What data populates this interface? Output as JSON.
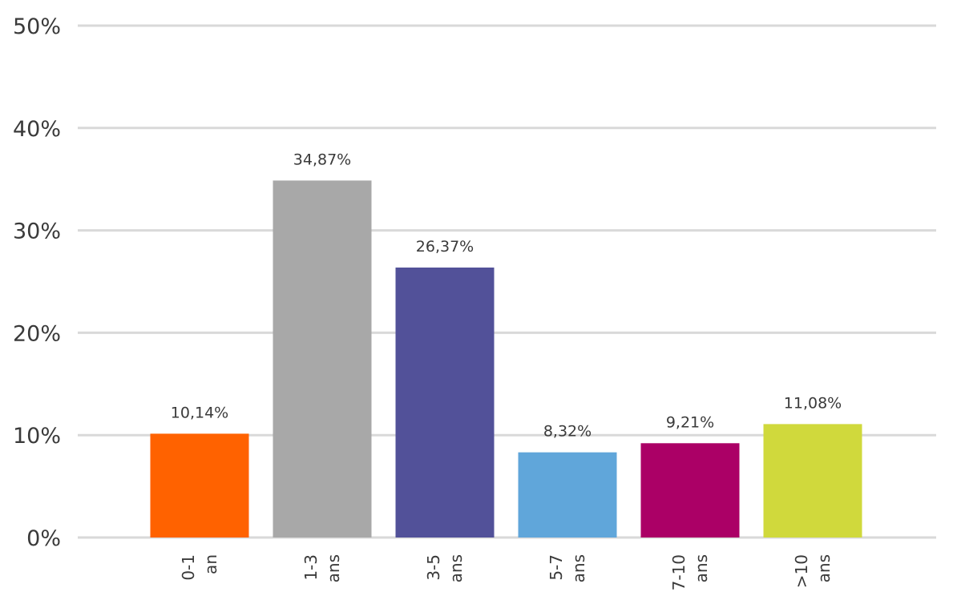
{
  "chart_data": {
    "type": "bar",
    "categories": [
      "0-1 an",
      "1-3 ans",
      "3-5 ans",
      "5-7 ans",
      "7-10 ans",
      ">10 ans"
    ],
    "category_lines": [
      [
        "0-1",
        "an"
      ],
      [
        "1-3",
        "ans"
      ],
      [
        "3-5",
        "ans"
      ],
      [
        "5-7",
        "ans"
      ],
      [
        "7-10",
        "ans"
      ],
      [
        ">10",
        "ans"
      ]
    ],
    "values": [
      10.14,
      34.87,
      26.37,
      8.32,
      9.21,
      11.08
    ],
    "data_labels": [
      "10,14%",
      "34,87%",
      "26,37%",
      "8,32%",
      "9,21%",
      "11,08%"
    ],
    "colors": [
      "#ff6200",
      "#a8a8a8",
      "#525199",
      "#60a6da",
      "#ab0066",
      "#d0d93c"
    ],
    "ylim": [
      0,
      50
    ],
    "yticks": [
      0,
      10,
      20,
      30,
      40,
      50
    ],
    "ytick_labels": [
      "0%",
      "10%",
      "20%",
      "30%",
      "40%",
      "50%"
    ],
    "grid": true,
    "grid_color": "#d9d9d9",
    "title": "",
    "xlabel": "",
    "ylabel": ""
  }
}
